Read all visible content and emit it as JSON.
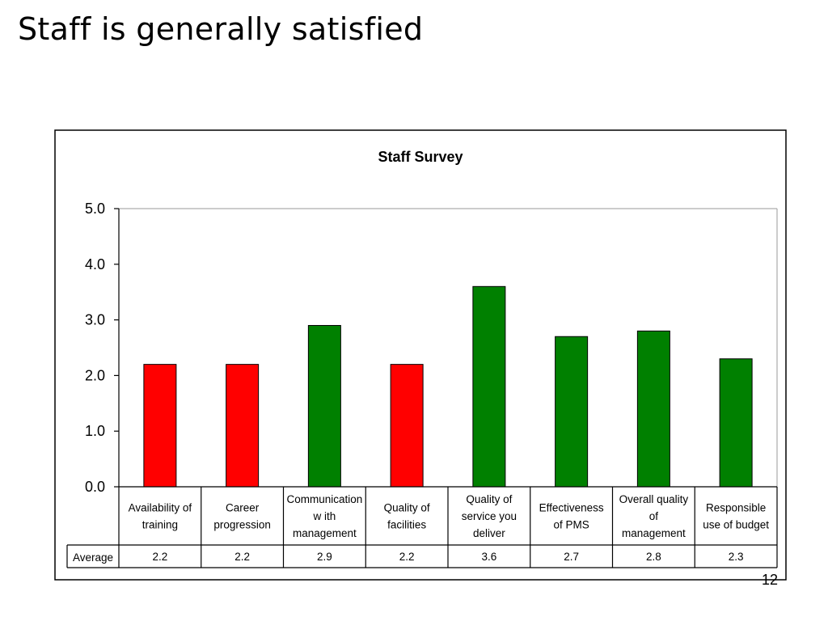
{
  "slide": {
    "title": "Staff is generally satisfied",
    "page_number": "12"
  },
  "chart_data": {
    "type": "bar",
    "title": "Staff Survey",
    "xlabel": "",
    "ylabel": "",
    "ylim": [
      0,
      5
    ],
    "yticks": [
      "0.0",
      "1.0",
      "2.0",
      "3.0",
      "4.0",
      "5.0"
    ],
    "grid": false,
    "categories": [
      [
        "Availability of",
        "training"
      ],
      [
        "Career",
        "progression"
      ],
      [
        "Communication",
        "w ith",
        "management"
      ],
      [
        "Quality of",
        "facilities"
      ],
      [
        "Quality of",
        "service you",
        "deliver"
      ],
      [
        "Effectiveness",
        "of PMS"
      ],
      [
        "Overall quality",
        "of",
        "management"
      ],
      [
        "Responsible",
        "use of budget"
      ]
    ],
    "series": [
      {
        "name": "Average",
        "values": [
          2.2,
          2.2,
          2.9,
          2.2,
          3.6,
          2.7,
          2.8,
          2.3
        ],
        "labels": [
          "2.2",
          "2.2",
          "2.9",
          "2.2",
          "3.6",
          "2.7",
          "2.8",
          "2.3"
        ]
      }
    ],
    "bar_colors": [
      "#ff0000",
      "#ff0000",
      "#008000",
      "#ff0000",
      "#008000",
      "#008000",
      "#008000",
      "#008000"
    ],
    "data_table": true
  }
}
